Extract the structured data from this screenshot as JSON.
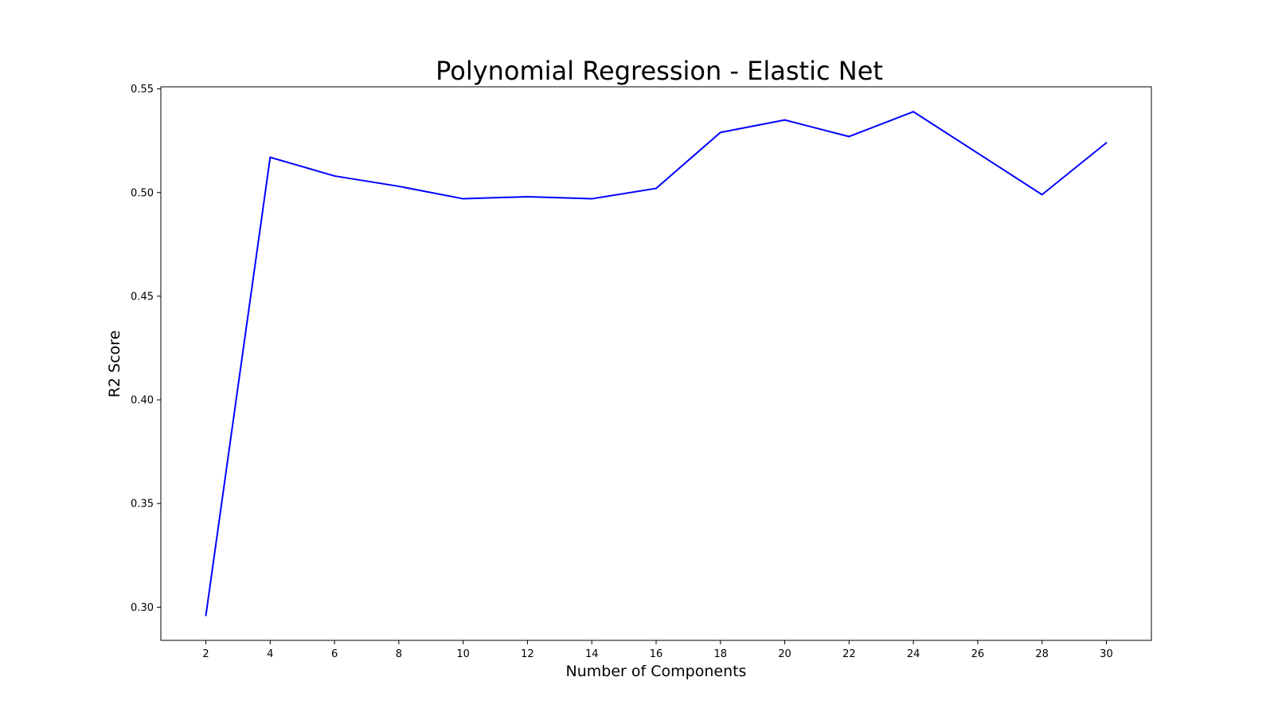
{
  "chart_data": {
    "type": "line",
    "title": "Polynomial Regression - Elastic Net",
    "xlabel": "Number of Components",
    "ylabel": "R2 Score",
    "xlim": [
      0.6,
      31.4
    ],
    "ylim": [
      0.284,
      0.551
    ],
    "xticks": [
      2,
      4,
      6,
      8,
      10,
      12,
      14,
      16,
      18,
      20,
      22,
      24,
      26,
      28,
      30
    ],
    "yticks": [
      "0.30",
      "0.35",
      "0.40",
      "0.45",
      "0.50",
      "0.55"
    ],
    "grid": false,
    "series": [
      {
        "color": "#0000ff",
        "x": [
          2,
          4,
          6,
          8,
          10,
          12,
          14,
          16,
          18,
          20,
          22,
          24,
          26,
          28,
          30
        ],
        "y": [
          0.296,
          0.517,
          0.508,
          0.503,
          0.497,
          0.498,
          0.497,
          0.502,
          0.529,
          0.535,
          0.527,
          0.539,
          0.519,
          0.499,
          0.524
        ]
      }
    ]
  }
}
